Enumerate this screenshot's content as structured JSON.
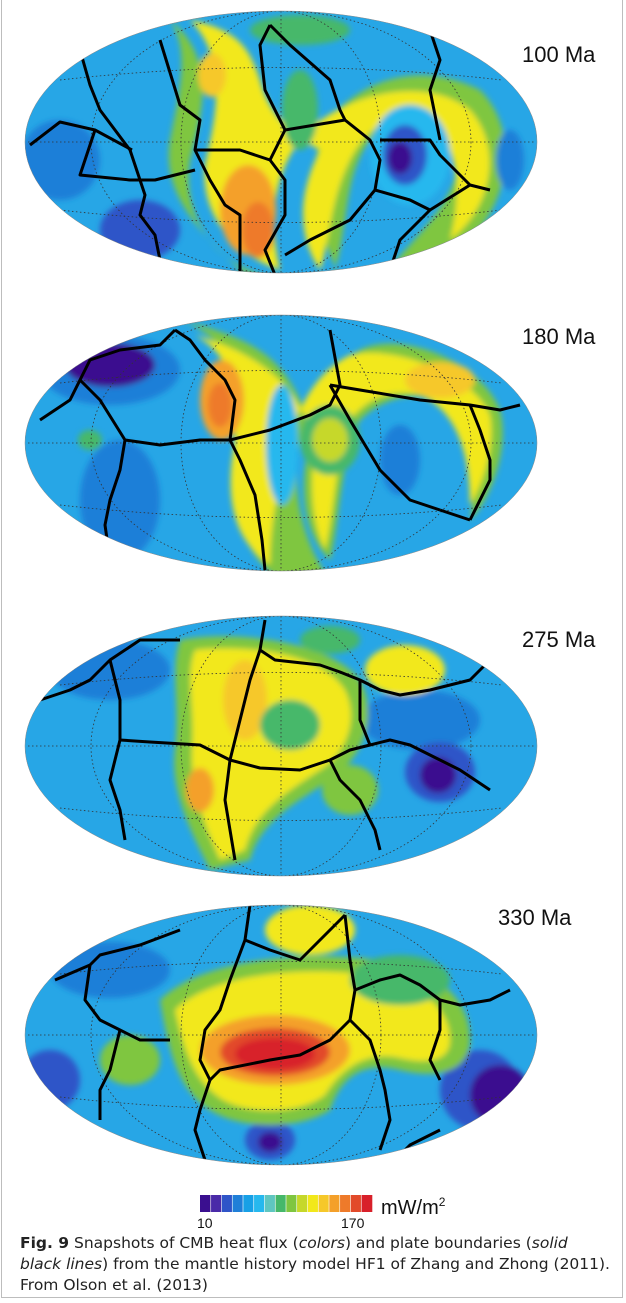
{
  "panels": [
    {
      "label": "100 Ma"
    },
    {
      "label": "180 Ma"
    },
    {
      "label": "275 Ma"
    },
    {
      "label": "330 Ma"
    }
  ],
  "colorbar": {
    "min_label": "10",
    "max_label": "170",
    "unit_base": "mW/m",
    "unit_sup": "2",
    "min": 10,
    "max": 170,
    "colors": [
      "#3a0f8f",
      "#4a2aa8",
      "#2f55c8",
      "#1f7fd8",
      "#17a0e6",
      "#26b8ee",
      "#5fc6c0",
      "#46b86a",
      "#7fc640",
      "#c6d82a",
      "#f2e81a",
      "#f6c82a",
      "#f4a02a",
      "#ee7a2a",
      "#e24a2a",
      "#d8202a"
    ]
  },
  "caption": {
    "fig_label": "Fig. 9",
    "t1": " Snapshots of CMB heat flux (",
    "i1": "colors",
    "t2": ") and plate boundaries (",
    "i2": "solid black lines",
    "t3": ") from the mantle history model HF1 of Zhang and Zhong (2011). From Olson et al. (2013)"
  }
}
